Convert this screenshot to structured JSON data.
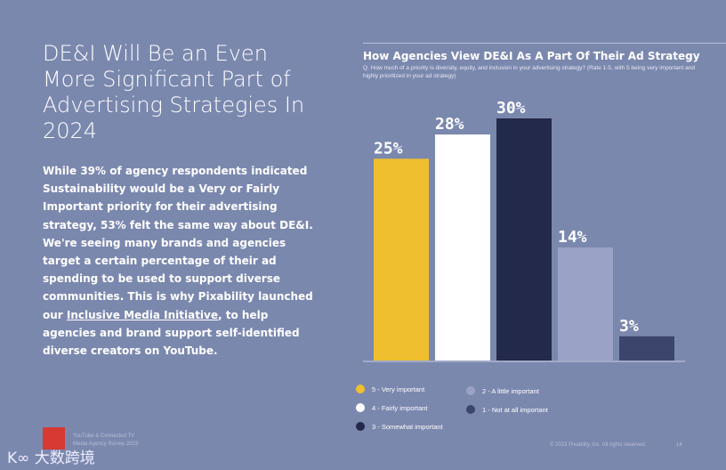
{
  "left": {
    "title": "DE&I Will Be an Even More Significant Part of Advertising Strategies In 2024",
    "body_before": "While 39% of agency respondents indicated Sustainability would be a Very or Fairly Important priority for their advertising strategy, 53% felt the same way about DE&I. We're seeing many brands and agencies target a certain percentage of their ad spending to be used to support diverse communities. This is why Pixability launched our ",
    "link": "Inclusive Media Initiative",
    "body_after": ", to help agencies and brand support self-identified diverse creators on YouTube."
  },
  "chart_data": {
    "type": "bar",
    "title": "How Agencies View DE&I As A Part Of Their Ad Strategy",
    "subtitle": "Q. How much of a priority is diversity, equity, and inclusion in your advertising strategy? (Rate 1-5, with 5 being very important and highly prioritized in your ad strategy)",
    "categories": [
      "5 - Very important",
      "4 - Fairly important",
      "3 - Somewhat important",
      "2 - A little important",
      "1 - Not at all important"
    ],
    "values": [
      25,
      28,
      30,
      14,
      3
    ],
    "labels": [
      "25%",
      "28%",
      "30%",
      "14%",
      "3%"
    ],
    "colors": [
      "#f0bf30",
      "#ffffff",
      "#23294a",
      "#9aa3c6",
      "#3c456c"
    ],
    "ylim": [
      0,
      30
    ],
    "legend": "bottom"
  },
  "footer": {
    "report_line1": "YouTube & Connected TV",
    "report_line2": "Media Agency Survey 2023",
    "copyright": "© 2023 Pixability, Inc. All rights reserved.",
    "page": "14",
    "watermark": "大数跨境"
  }
}
